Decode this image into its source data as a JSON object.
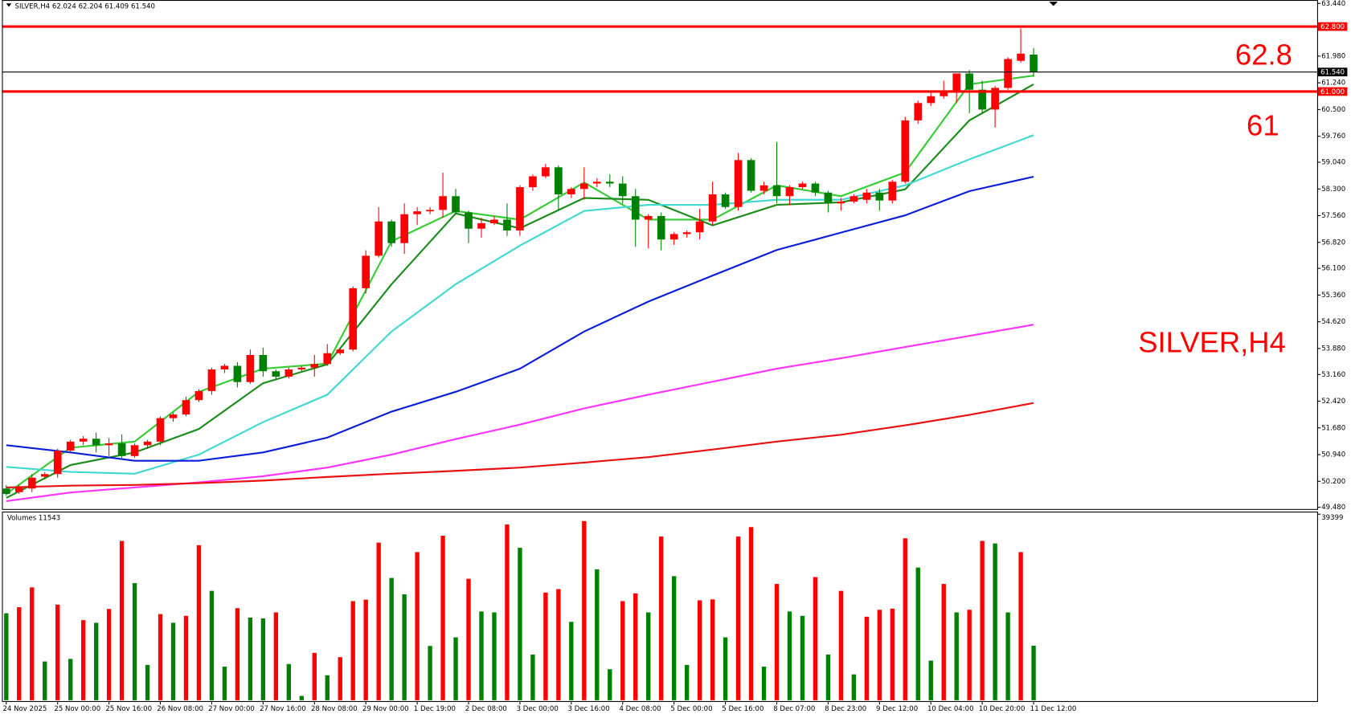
{
  "chart_data": [
    {
      "type": "candlestick",
      "title": "SILVER,H4",
      "header_values": [
        62.024,
        62.204,
        61.409,
        {
          "value": 61.54,
          "label": "61.540"
        }
      ],
      "open": [
        50.0,
        49.9,
        50.0,
        50.33,
        50.4,
        51.05,
        51.3,
        51.38,
        51.2,
        51.25,
        50.9,
        51.2,
        51.3,
        51.95,
        52.05,
        52.45,
        52.7,
        53.3,
        53.4,
        52.95,
        53.7,
        53.25,
        53.1,
        53.3,
        53.35,
        53.45,
        53.75,
        53.85,
        55.55,
        56.45,
        57.4,
        56.8,
        57.6,
        57.68,
        57.72,
        58.1,
        57.65,
        57.2,
        57.35,
        57.45,
        57.15,
        58.35,
        58.65,
        58.9,
        58.15,
        58.3,
        58.45,
        58.5,
        58.45,
        58.1,
        57.45,
        57.55,
        56.9,
        57.05,
        57.1,
        57.4,
        58.15,
        57.8,
        59.1,
        58.25,
        58.4,
        58.1,
        58.35,
        58.45,
        58.2,
        57.9,
        57.95,
        58.0,
        58.2,
        57.98,
        58.5,
        60.2,
        60.68,
        60.87,
        61.03,
        61.5,
        61.05,
        60.5,
        61.1,
        61.85,
        62.024
      ],
      "high": [
        50.1,
        50.1,
        50.4,
        50.45,
        51.1,
        51.35,
        51.45,
        51.55,
        51.4,
        51.5,
        51.25,
        51.35,
        52.0,
        52.1,
        52.55,
        52.75,
        53.35,
        53.45,
        53.5,
        53.85,
        53.9,
        53.3,
        53.35,
        53.4,
        53.7,
        54.0,
        53.9,
        55.6,
        56.6,
        57.8,
        57.45,
        57.9,
        57.8,
        57.8,
        58.75,
        58.3,
        57.7,
        57.5,
        57.55,
        57.9,
        58.4,
        58.7,
        59.0,
        58.95,
        58.35,
        58.9,
        58.6,
        58.7,
        58.65,
        58.3,
        57.6,
        57.65,
        57.1,
        57.15,
        57.75,
        58.5,
        58.2,
        59.3,
        59.15,
        58.5,
        59.6,
        58.4,
        58.5,
        58.5,
        58.25,
        58.05,
        58.15,
        58.3,
        58.3,
        58.55,
        60.3,
        60.75,
        61.0,
        61.3,
        61.5,
        61.6,
        61.3,
        61.15,
        61.95,
        62.75,
        62.204
      ],
      "low": [
        49.8,
        49.85,
        49.9,
        50.25,
        50.3,
        51.0,
        51.2,
        51.0,
        50.9,
        50.8,
        50.85,
        51.1,
        51.2,
        51.85,
        52.0,
        52.4,
        52.6,
        53.2,
        52.8,
        52.9,
        53.1,
        53.0,
        53.05,
        53.25,
        53.1,
        53.4,
        53.7,
        53.8,
        55.4,
        56.4,
        56.7,
        56.5,
        57.3,
        57.6,
        57.5,
        57.6,
        56.8,
        56.95,
        57.3,
        57.0,
        57.0,
        58.25,
        58.6,
        57.7,
        58.05,
        58.0,
        58.35,
        58.35,
        57.9,
        56.7,
        56.65,
        56.6,
        56.75,
        56.95,
        56.9,
        57.3,
        57.75,
        57.7,
        58.2,
        58.15,
        57.9,
        57.85,
        58.3,
        58.1,
        57.65,
        57.7,
        57.9,
        57.9,
        57.7,
        57.9,
        58.45,
        60.1,
        60.6,
        60.8,
        60.7,
        60.4,
        60.4,
        60.0,
        61.05,
        61.8,
        61.409
      ],
      "close": [
        49.85,
        50.05,
        50.3,
        50.4,
        51.05,
        51.3,
        51.38,
        51.2,
        51.25,
        50.9,
        51.2,
        51.3,
        51.95,
        52.05,
        52.45,
        52.7,
        53.3,
        53.4,
        52.95,
        53.7,
        53.25,
        53.1,
        53.3,
        53.35,
        53.45,
        53.75,
        53.85,
        55.55,
        56.45,
        57.4,
        56.8,
        57.6,
        57.68,
        57.72,
        58.1,
        57.65,
        57.2,
        57.35,
        57.45,
        57.15,
        58.35,
        58.65,
        58.9,
        58.15,
        58.3,
        58.45,
        58.5,
        58.45,
        58.1,
        57.45,
        57.55,
        56.9,
        57.05,
        57.1,
        57.4,
        58.15,
        57.8,
        59.1,
        58.25,
        58.4,
        58.1,
        58.35,
        58.45,
        58.2,
        57.9,
        57.95,
        58.1,
        58.2,
        57.98,
        58.5,
        60.2,
        60.68,
        60.87,
        61.03,
        61.5,
        61.05,
        60.5,
        61.1,
        61.9,
        62.05,
        61.54
      ],
      "up_color": "#ff0000",
      "down_color": "#008000",
      "ma_x": [
        0,
        5,
        10,
        15,
        20,
        25,
        30,
        35,
        40,
        45,
        50,
        55,
        60,
        65,
        70,
        75,
        80
      ],
      "series": [
        {
          "color": "#33cc33",
          "values": [
            49.85,
            51.13,
            51.3,
            52.68,
            53.32,
            53.46,
            56.85,
            57.69,
            57.45,
            58.48,
            57.45,
            57.45,
            58.4,
            58.1,
            58.76,
            61.2,
            61.44
          ]
        },
        {
          "color": "#1a8c1a",
          "values": [
            49.74,
            50.65,
            51.0,
            51.65,
            52.92,
            53.44,
            55.66,
            57.62,
            57.21,
            58.05,
            58.0,
            57.29,
            57.86,
            57.93,
            58.29,
            60.2,
            61.2
          ]
        },
        {
          "color": "#40d8d0",
          "values": [
            50.6,
            50.46,
            50.41,
            50.94,
            51.84,
            52.6,
            54.35,
            55.66,
            56.73,
            57.69,
            57.86,
            57.86,
            58.0,
            58.0,
            58.4,
            59.12,
            59.79
          ]
        },
        {
          "color": "#0a1ed8",
          "values": [
            51.2,
            51.0,
            50.77,
            50.77,
            51.0,
            51.41,
            52.13,
            52.68,
            53.32,
            54.35,
            55.18,
            55.9,
            56.61,
            57.09,
            57.57,
            58.24,
            58.64
          ]
        },
        {
          "color": "#ff33ff",
          "values": [
            49.65,
            49.89,
            50.03,
            50.17,
            50.34,
            50.58,
            50.94,
            51.37,
            51.77,
            52.22,
            52.6,
            52.96,
            53.32,
            53.61,
            53.92,
            54.23,
            54.54
          ]
        },
        {
          "color": "#e81010",
          "values": [
            50.03,
            50.08,
            50.1,
            50.15,
            50.22,
            50.32,
            50.41,
            50.49,
            50.58,
            50.72,
            50.87,
            51.08,
            51.3,
            51.49,
            51.75,
            52.04,
            52.37
          ]
        }
      ],
      "hlines": [
        {
          "value": 62.8,
          "label": "62.800",
          "color": "#ff0000"
        },
        {
          "value": 61.0,
          "label": "61.000",
          "color": "#ff0000"
        },
        {
          "value": 61.54,
          "label": "61.540",
          "color": "#000000"
        }
      ],
      "annotations": [
        "62.8",
        "61",
        "SILVER,H4"
      ],
      "ylim": [
        49.48,
        63.44
      ],
      "yticks": [
        {
          "value": 63.44,
          "label": "63.440"
        },
        {
          "value": 61.98,
          "label": "61.980"
        },
        {
          "value": 61.24,
          "label": "61.240"
        },
        {
          "value": 60.5,
          "label": "60.500"
        },
        {
          "value": 59.76,
          "label": "59.760"
        },
        {
          "value": 59.04,
          "label": "59.040"
        },
        {
          "value": 58.3,
          "label": "58.300"
        },
        {
          "value": 57.56,
          "label": "57.560"
        },
        {
          "value": 56.82,
          "label": "56.820"
        },
        {
          "value": 56.1,
          "label": "56.100"
        },
        {
          "value": 55.36,
          "label": "55.360"
        },
        {
          "value": 54.62,
          "label": "54.620"
        },
        {
          "value": 53.88,
          "label": "53.880"
        },
        {
          "value": 53.16,
          "label": "53.160"
        },
        {
          "value": 52.42,
          "label": "52.420"
        },
        {
          "value": 51.68,
          "label": "51.680"
        },
        {
          "value": 50.94,
          "label": "50.940"
        },
        {
          "value": 50.2,
          "label": "50.200"
        },
        {
          "value": 49.48,
          "label": "49.480"
        }
      ]
    },
    {
      "type": "bar",
      "title": "Volumes",
      "categories": [
        "24 Nov 2025",
        null,
        null,
        null,
        "25 Nov 00:00",
        null,
        null,
        null,
        "25 Nov 16:00",
        null,
        null,
        null,
        "26 Nov 08:00",
        null,
        null,
        null,
        "27 Nov 00:00",
        null,
        null,
        null,
        "27 Nov 16:00",
        null,
        null,
        null,
        "28 Nov 08:00",
        null,
        null,
        null,
        "29 Nov 00:00",
        null,
        null,
        null,
        "1 Dec 19:00",
        null,
        null,
        null,
        "2 Dec 08:00",
        null,
        null,
        null,
        "3 Dec 00:00",
        null,
        null,
        null,
        "3 Dec 16:00",
        null,
        null,
        null,
        "4 Dec 08:00",
        null,
        null,
        null,
        "5 Dec 00:00",
        null,
        null,
        null,
        "5 Dec 16:00",
        null,
        null,
        null,
        "8 Dec 07:00",
        null,
        null,
        null,
        "8 Dec 23:00",
        null,
        null,
        null,
        "9 Dec 12:00",
        null,
        null,
        null,
        "10 Dec 04:00",
        null,
        null,
        null,
        "10 Dec 20:00",
        null,
        null,
        null,
        "11 Dec 12:00"
      ],
      "values": [
        18420,
        19700,
        23900,
        8200,
        20250,
        8750,
        16960,
        16400,
        19330,
        33740,
        24800,
        7480,
        18240,
        16400,
        17870,
        32830,
        23160,
        7110,
        19500,
        17510,
        17330,
        18600,
        7660,
        910,
        10030,
        5290,
        9120,
        20980,
        21300,
        33380,
        25900,
        22430,
        31370,
        11490,
        34840,
        13310,
        25720,
        18790,
        18600,
        37210,
        32280,
        9670,
        22800,
        23530,
        16600,
        37940,
        27720,
        6570,
        20980,
        22620,
        18600,
        34660,
        26270,
        7480,
        21160,
        21350,
        13310,
        34660,
        36660,
        7110,
        24620,
        18790,
        17870,
        26080,
        9670,
        23160,
        5470,
        17690,
        19150,
        19400,
        34290,
        28090,
        8390,
        24620,
        18600,
        19150,
        33740,
        33200,
        18600,
        31370,
        11543
      ],
      "up_color": "#ff0000",
      "down_color": "#008000",
      "ylim": [
        0,
        39399
      ],
      "yticks": [
        39399
      ]
    }
  ]
}
